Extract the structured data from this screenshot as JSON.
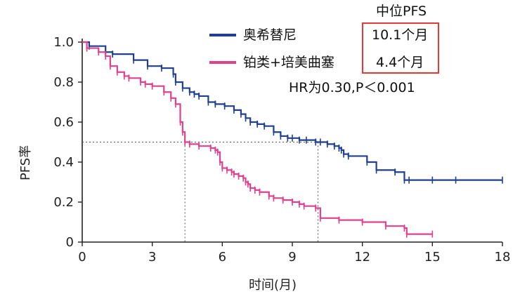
{
  "chart_data": {
    "type": "line",
    "title": "",
    "xlabel": "时间(月)",
    "ylabel": "PFS率",
    "xlim": [
      0,
      18
    ],
    "ylim": [
      0,
      1.0
    ],
    "xticks": [
      0,
      3,
      6,
      9,
      12,
      15,
      18
    ],
    "xtick_labels": [
      "0",
      "3",
      "6",
      "9",
      "12",
      "15",
      "18"
    ],
    "yticks": [
      0,
      0.2,
      0.4,
      0.6,
      0.8,
      1.0
    ],
    "ytick_labels": [
      "0",
      "0.2",
      "0.4",
      "0.6",
      "0.8",
      "1.0"
    ],
    "grid": false,
    "legend_position": "top-right",
    "legend_header": "中位PFS",
    "hr_text": "HR为0.30,P＜0.001",
    "median_reference_y": 0.5,
    "series": [
      {
        "name": "奥希替尼",
        "median_label": "10.1个月",
        "median": 10.1,
        "color": "#1f3f94",
        "x": [
          0,
          0.3,
          1.0,
          1.3,
          2.2,
          2.8,
          3.4,
          3.9,
          4.0,
          4.3,
          4.6,
          4.8,
          5.0,
          5.4,
          5.7,
          6.1,
          6.5,
          6.8,
          7.0,
          7.2,
          7.5,
          7.8,
          8.2,
          8.5,
          8.8,
          9.0,
          9.3,
          9.6,
          10.0,
          10.2,
          10.5,
          10.8,
          11.0,
          11.1,
          11.2,
          11.4,
          12.2,
          12.6,
          13.4,
          13.8,
          14.0,
          15.0,
          16.0,
          18.0
        ],
        "y": [
          1.0,
          0.98,
          0.95,
          0.94,
          0.91,
          0.88,
          0.87,
          0.84,
          0.8,
          0.77,
          0.75,
          0.74,
          0.73,
          0.7,
          0.69,
          0.68,
          0.66,
          0.64,
          0.62,
          0.6,
          0.59,
          0.58,
          0.55,
          0.53,
          0.52,
          0.52,
          0.51,
          0.51,
          0.5,
          0.5,
          0.49,
          0.48,
          0.47,
          0.46,
          0.44,
          0.43,
          0.4,
          0.36,
          0.35,
          0.31,
          0.31,
          0.31,
          0.31,
          0.31
        ]
      },
      {
        "name": "铂类+培美曲塞",
        "median_label": "4.4个月",
        "median": 4.4,
        "color": "#e0418c",
        "x": [
          0,
          0.2,
          0.7,
          1.0,
          1.2,
          1.5,
          1.8,
          2.0,
          2.5,
          2.7,
          3.0,
          3.5,
          3.8,
          4.0,
          4.2,
          4.3,
          4.4,
          4.6,
          5.0,
          5.5,
          5.7,
          5.8,
          5.9,
          6.0,
          6.2,
          6.4,
          6.5,
          6.7,
          6.9,
          7.0,
          7.1,
          7.2,
          7.4,
          7.6,
          8.0,
          8.2,
          8.6,
          9.0,
          9.3,
          9.5,
          10.0,
          10.2,
          11.0,
          12.0,
          13.0,
          13.8,
          13.9,
          15.0
        ],
        "y": [
          1.0,
          0.97,
          0.95,
          0.93,
          0.88,
          0.85,
          0.83,
          0.82,
          0.8,
          0.79,
          0.78,
          0.75,
          0.72,
          0.69,
          0.6,
          0.55,
          0.5,
          0.49,
          0.48,
          0.47,
          0.46,
          0.45,
          0.4,
          0.37,
          0.36,
          0.35,
          0.34,
          0.33,
          0.32,
          0.3,
          0.29,
          0.27,
          0.26,
          0.25,
          0.23,
          0.22,
          0.21,
          0.2,
          0.19,
          0.18,
          0.17,
          0.12,
          0.11,
          0.1,
          0.08,
          0.07,
          0.04,
          0.04
        ]
      }
    ]
  }
}
